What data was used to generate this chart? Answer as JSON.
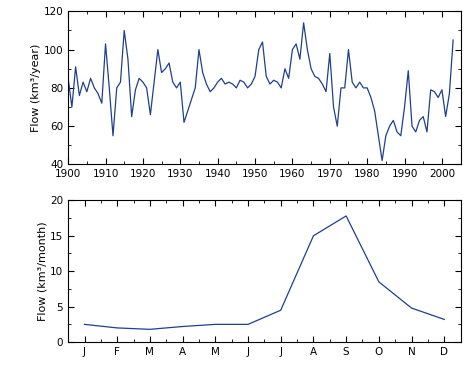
{
  "annual_years": [
    1900,
    1901,
    1902,
    1903,
    1904,
    1905,
    1906,
    1907,
    1908,
    1909,
    1910,
    1911,
    1912,
    1913,
    1914,
    1915,
    1916,
    1917,
    1918,
    1919,
    1920,
    1921,
    1922,
    1923,
    1924,
    1925,
    1926,
    1927,
    1928,
    1929,
    1930,
    1931,
    1932,
    1933,
    1934,
    1935,
    1936,
    1937,
    1938,
    1939,
    1940,
    1941,
    1942,
    1943,
    1944,
    1945,
    1946,
    1947,
    1948,
    1949,
    1950,
    1951,
    1952,
    1953,
    1954,
    1955,
    1956,
    1957,
    1958,
    1959,
    1960,
    1961,
    1962,
    1963,
    1964,
    1965,
    1966,
    1967,
    1968,
    1969,
    1970,
    1971,
    1972,
    1973,
    1974,
    1975,
    1976,
    1977,
    1978,
    1979,
    1980,
    1981,
    1982,
    1983,
    1984,
    1985,
    1986,
    1987,
    1988,
    1989,
    1990,
    1991,
    1992,
    1993,
    1994,
    1995,
    1996,
    1997,
    1998,
    1999,
    2000,
    2001,
    2002,
    2003
  ],
  "annual_flow": [
    85,
    70,
    91,
    76,
    83,
    78,
    85,
    80,
    77,
    72,
    103,
    80,
    55,
    80,
    83,
    110,
    95,
    65,
    79,
    85,
    83,
    80,
    66,
    83,
    100,
    88,
    90,
    93,
    83,
    80,
    83,
    62,
    68,
    74,
    80,
    100,
    88,
    82,
    78,
    80,
    83,
    85,
    82,
    83,
    82,
    80,
    84,
    83,
    80,
    82,
    86,
    100,
    104,
    86,
    82,
    84,
    83,
    80,
    90,
    85,
    100,
    103,
    95,
    114,
    100,
    90,
    86,
    85,
    82,
    78,
    98,
    70,
    60,
    80,
    80,
    100,
    83,
    80,
    83,
    80,
    80,
    75,
    68,
    55,
    42,
    55,
    60,
    63,
    57,
    55,
    70,
    89,
    60,
    57,
    63,
    65,
    57,
    79,
    78,
    75,
    79,
    65,
    77,
    105
  ],
  "monthly_months": [
    0,
    1,
    2,
    3,
    4,
    5,
    6,
    7,
    8,
    9,
    10,
    11
  ],
  "monthly_flow": [
    2.5,
    2.0,
    1.8,
    2.2,
    2.5,
    2.5,
    4.5,
    15.0,
    17.8,
    8.5,
    4.8,
    3.2
  ],
  "line_color": "#1f3f8f",
  "annual_ylabel": "Flow (km³/year)",
  "monthly_ylabel": "Flow (km³/month)",
  "annual_xlim": [
    1900,
    2005
  ],
  "annual_ylim": [
    40,
    120
  ],
  "annual_yticks": [
    40,
    60,
    80,
    100,
    120
  ],
  "annual_xticks": [
    1900,
    1910,
    1920,
    1930,
    1940,
    1950,
    1960,
    1970,
    1980,
    1990,
    2000
  ],
  "monthly_ylim": [
    0,
    20
  ],
  "monthly_yticks": [
    0,
    5,
    10,
    15,
    20
  ],
  "monthly_xlabels": [
    "J",
    "F",
    "M",
    "A",
    "M",
    "J",
    "J",
    "A",
    "S",
    "O",
    "N",
    "D"
  ]
}
